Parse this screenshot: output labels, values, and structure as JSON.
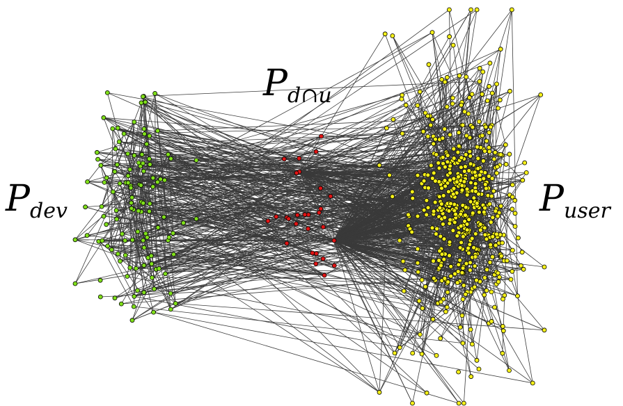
{
  "labels": {
    "dev": {
      "main": "P",
      "sub": "dev"
    },
    "both": {
      "main": "P",
      "sub": "d∩u"
    },
    "user": {
      "main": "P",
      "sub": "user"
    }
  },
  "groups": {
    "dev": {
      "color": "#80e01a",
      "node_count": 120
    },
    "both": {
      "color": "#e01414",
      "node_count": 28
    },
    "user": {
      "color": "#f5f019",
      "node_count": 520
    }
  },
  "edge_color": "#3a3a3a",
  "node_stroke": "#000000"
}
